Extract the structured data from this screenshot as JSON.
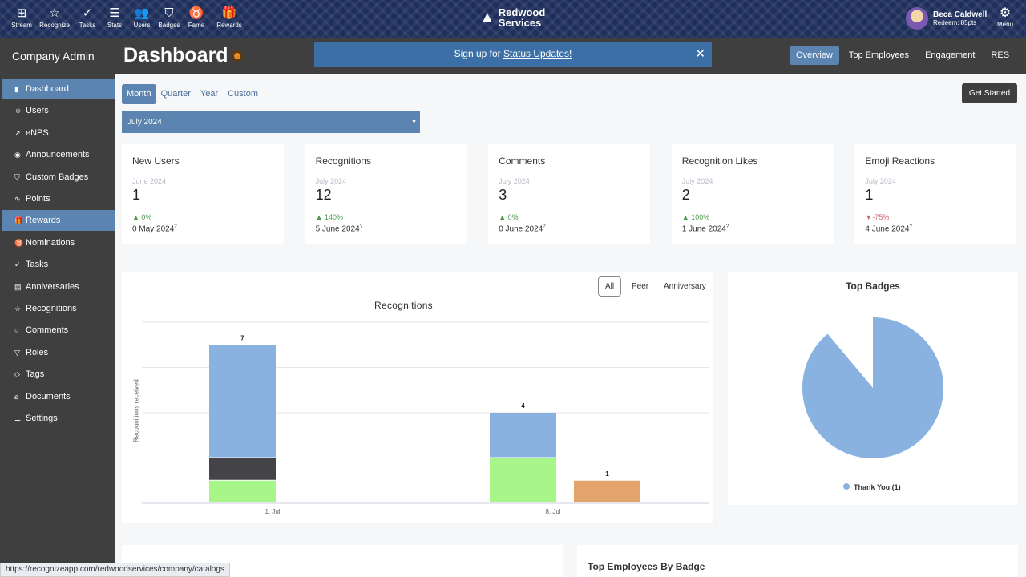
{
  "topnav": {
    "items": [
      {
        "label": "Stream",
        "icon": "grid-icon"
      },
      {
        "label": "Recognize",
        "icon": "star-icon"
      },
      {
        "label": "Tasks",
        "icon": "check-circle-icon"
      },
      {
        "label": "Stats",
        "icon": "list-icon"
      },
      {
        "label": "Users",
        "icon": "users-icon"
      },
      {
        "label": "Badges",
        "icon": "shield-icon"
      },
      {
        "label": "Fame",
        "icon": "award-icon"
      },
      {
        "label": "Rewards",
        "icon": "gift-icon"
      }
    ],
    "logo_line1": "Redwood",
    "logo_line2": "Services",
    "user_name": "Beca Caldwell",
    "user_points": "Redeem: 85pts",
    "menu_label": "Menu"
  },
  "header": {
    "section": "Company Admin",
    "title": "Dashboard",
    "banner_text": "Sign up for ",
    "banner_link": "Status Updates!",
    "tabs": [
      {
        "label": "Overview",
        "active": true
      },
      {
        "label": "Top Employees"
      },
      {
        "label": "Engagement"
      },
      {
        "label": "RES"
      }
    ]
  },
  "sidebar": {
    "items": [
      {
        "label": "Dashboard",
        "icon": "bar-chart-icon",
        "active": true
      },
      {
        "label": "Users",
        "icon": "user-icon"
      },
      {
        "label": "eNPS",
        "icon": "trend-icon"
      },
      {
        "label": "Announcements",
        "icon": "broadcast-icon"
      },
      {
        "label": "Custom Badges",
        "icon": "shield-icon"
      },
      {
        "label": "Points",
        "icon": "pulse-icon"
      },
      {
        "label": "Rewards",
        "icon": "gift-icon",
        "active": true
      },
      {
        "label": "Nominations",
        "icon": "award-icon"
      },
      {
        "label": "Tasks",
        "icon": "check-circle-icon"
      },
      {
        "label": "Anniversaries",
        "icon": "calendar-icon"
      },
      {
        "label": "Recognitions",
        "icon": "star-icon"
      },
      {
        "label": "Comments",
        "icon": "comment-icon"
      },
      {
        "label": "Roles",
        "icon": "filter-icon"
      },
      {
        "label": "Tags",
        "icon": "tag-icon"
      },
      {
        "label": "Documents",
        "icon": "paperclip-icon"
      },
      {
        "label": "Settings",
        "icon": "sliders-icon"
      }
    ]
  },
  "period": {
    "buttons": [
      "Month",
      "Quarter",
      "Year",
      "Custom"
    ],
    "active": "Month",
    "selected": "July 2024",
    "get_started": "Get Started"
  },
  "stats": [
    {
      "title": "New Users",
      "period": "June 2024",
      "value": "1",
      "change": "0%",
      "direction": "up",
      "previous": "0 May 2024"
    },
    {
      "title": "Recognitions",
      "period": "July 2024",
      "value": "12",
      "change": "140%",
      "direction": "up",
      "previous": "5 June 2024"
    },
    {
      "title": "Comments",
      "period": "July 2024",
      "value": "3",
      "change": "0%",
      "direction": "up",
      "previous": "0 June 2024"
    },
    {
      "title": "Recognition Likes",
      "period": "July 2024",
      "value": "2",
      "change": "100%",
      "direction": "up",
      "previous": "1 June 2024"
    },
    {
      "title": "Emoji Reactions",
      "period": "July 2024",
      "value": "1",
      "change": "-75%",
      "direction": "down",
      "previous": "4 June 2024"
    }
  ],
  "filters": [
    "All",
    "Peer",
    "Anniversary"
  ],
  "chart_data": [
    {
      "type": "bar",
      "stacked": true,
      "title": "Recognitions",
      "ylabel": "Recognitions received",
      "categories": [
        "1. Jul",
        "8. Jul"
      ],
      "ylim": [
        0,
        8
      ],
      "grid": true,
      "stacks": [
        {
          "category": "1. Jul",
          "total": 7,
          "segments": [
            {
              "value": 1,
              "color": "#a8f58a"
            },
            {
              "value": 1,
              "color": "#434348"
            },
            {
              "value": 5,
              "color": "#8ab2e0"
            }
          ]
        },
        {
          "category": "8. Jul",
          "total": 4,
          "segments": [
            {
              "value": 2,
              "color": "#a8f58a"
            },
            {
              "value": 2,
              "color": "#8ab2e0"
            }
          ]
        },
        {
          "category": "8. Jul",
          "total": 1,
          "segments": [
            {
              "value": 1,
              "color": "#e3a46c"
            }
          ]
        }
      ]
    },
    {
      "type": "pie",
      "title": "Top Badges",
      "slices": [
        {
          "label": "Thank You (1)",
          "value": 1,
          "color": "#8ab2e0"
        }
      ],
      "legend": "bottom"
    }
  ],
  "bottom": {
    "top_employees_by_badge": "Top Employees By Badge"
  },
  "statusbar": "https://recognizeapp.com/redwoodservices/company/catalogs"
}
